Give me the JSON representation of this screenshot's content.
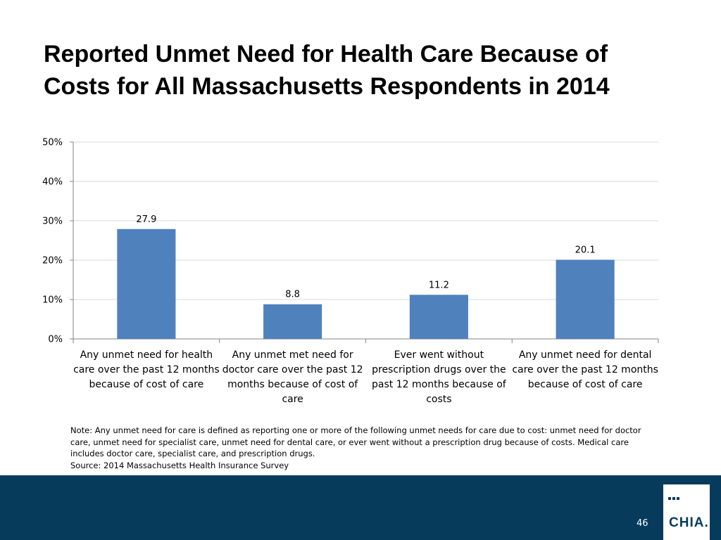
{
  "title": {
    "line1": "Reported Unmet Need for Health Care Because of",
    "line2": "Costs for All Massachusetts Respondents in 2014"
  },
  "chart_data": {
    "type": "bar",
    "title": "Reported Unmet Need for Health Care Because of Costs for All Massachusetts Respondents in 2014",
    "xlabel": "",
    "ylabel": "",
    "ylim": [
      0,
      50
    ],
    "y_ticks": [
      0,
      10,
      20,
      30,
      40,
      50
    ],
    "y_tick_labels": [
      "0%",
      "10%",
      "20%",
      "30%",
      "40%",
      "50%"
    ],
    "grid": true,
    "bar_color": "#4f81bd",
    "categories": [
      [
        "Any unmet need for health",
        "care over the past 12 months",
        "because of cost of care"
      ],
      [
        "Any unmet met need for",
        "doctor care over the past 12",
        "months because of cost of",
        "care"
      ],
      [
        "Ever went without",
        "prescription drugs over the",
        "past 12 months because of",
        "costs"
      ],
      [
        "Any unmet need for dental",
        "care over the past 12 months",
        "because of cost of care"
      ]
    ],
    "values": [
      27.9,
      8.8,
      11.2,
      20.1
    ],
    "data_labels": [
      "27.9",
      "8.8",
      "11.2",
      "20.1"
    ]
  },
  "note": {
    "lines": [
      "Note: Any unmet need for care is defined as reporting one or more of the following unmet needs for care due to cost: unmet need for doctor",
      "care, unmet need for specialist care, unmet need for dental care, or ever went without a prescription drug because of costs. Medical care",
      "includes doctor care, specialist care, and prescription drugs.",
      "Source:  2014 Massachusetts Health Insurance Survey"
    ]
  },
  "footer": {
    "page_number": "46",
    "logo_text": "CHIA.",
    "background_color": "#073b5c"
  }
}
